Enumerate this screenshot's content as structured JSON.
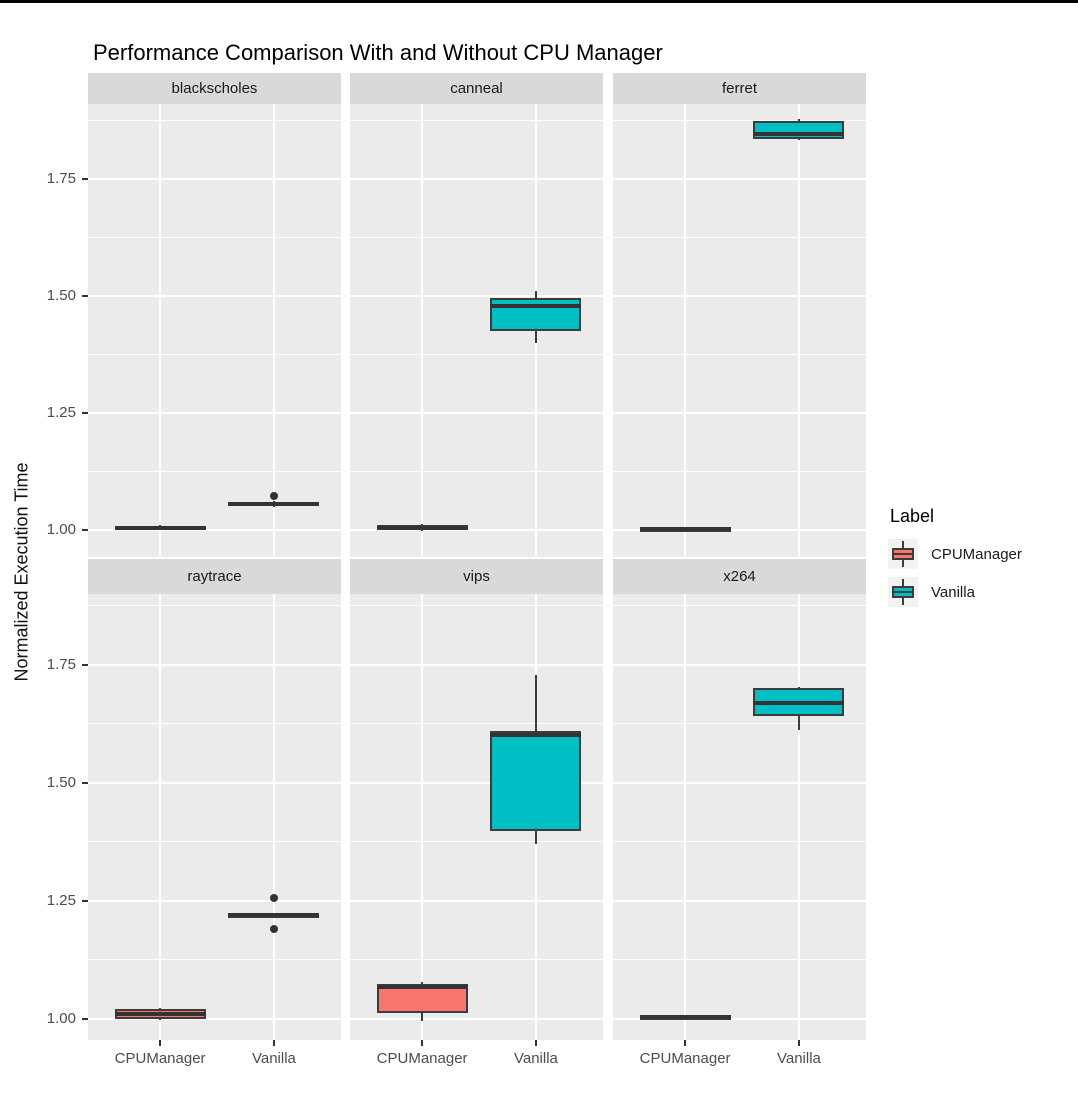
{
  "page": {
    "title": "Performance Comparison With and Without CPU Manager"
  },
  "axes": {
    "y_title": "Normalized Execution Time",
    "y_tick_labels": [
      "1.00",
      "1.25",
      "1.50",
      "1.75"
    ],
    "x_categories": [
      "CPUManager",
      "Vanilla"
    ]
  },
  "legend": {
    "title": "Label",
    "entries": [
      {
        "label": "CPUManager",
        "color": "#F8766D"
      },
      {
        "label": "Vanilla",
        "color": "#00BFC4"
      }
    ]
  },
  "chart_data": {
    "type": "boxplot",
    "title": "Performance Comparison With and Without CPU Manager",
    "ylabel": "Normalized Execution Time",
    "xlabel": "",
    "categories": [
      "CPUManager",
      "Vanilla"
    ],
    "yticks": [
      1.0,
      1.25,
      1.5,
      1.75
    ],
    "yticks_minor": [
      1.125,
      1.375,
      1.625,
      1.875
    ],
    "ylim": [
      0.94,
      1.91
    ],
    "grid": "white-on-gray",
    "legend_position": "right",
    "facet_rows": [
      [
        "blackscholes",
        "canneal",
        "ferret"
      ],
      [
        "raytrace",
        "vips",
        "x264"
      ]
    ],
    "colors": {
      "CPUManager": "#F8766D",
      "Vanilla": "#00BFC4",
      "box_border": "#3C3C3C",
      "panel_bg": "#EBEBEB",
      "strip_bg": "#D9D9D9",
      "grid": "#FFFFFF"
    },
    "facets": [
      {
        "label": "blackscholes",
        "boxes": [
          {
            "group": "CPUManager",
            "min": 1.0,
            "q1": 1.001,
            "median": 1.005,
            "q3": 1.009,
            "max": 1.01,
            "outliers": []
          },
          {
            "group": "Vanilla",
            "min": 1.049,
            "q1": 1.051,
            "median": 1.056,
            "q3": 1.06,
            "max": 1.062,
            "outliers": [
              1.072
            ]
          }
        ]
      },
      {
        "label": "canneal",
        "boxes": [
          {
            "group": "CPUManager",
            "min": 0.997,
            "q1": 1.0,
            "median": 1.003,
            "q3": 1.01,
            "max": 1.012,
            "outliers": []
          },
          {
            "group": "Vanilla",
            "min": 1.4,
            "q1": 1.424,
            "median": 1.479,
            "q3": 1.496,
            "max": 1.51,
            "outliers": []
          }
        ]
      },
      {
        "label": "ferret",
        "boxes": [
          {
            "group": "CPUManager",
            "min": 0.997,
            "q1": 0.999,
            "median": 1.001,
            "q3": 1.004,
            "max": 1.005,
            "outliers": []
          },
          {
            "group": "Vanilla",
            "min": 1.832,
            "q1": 1.836,
            "median": 1.845,
            "q3": 1.873,
            "max": 1.877,
            "outliers": []
          }
        ]
      },
      {
        "label": "raytrace",
        "boxes": [
          {
            "group": "CPUManager",
            "min": 0.997,
            "q1": 1.0,
            "median": 1.01,
            "q3": 1.02,
            "max": 1.023,
            "outliers": []
          },
          {
            "group": "Vanilla",
            "min": 1.214,
            "q1": 1.216,
            "median": 1.219,
            "q3": 1.222,
            "max": 1.224,
            "outliers": [
              1.255,
              1.19
            ]
          }
        ]
      },
      {
        "label": "vips",
        "boxes": [
          {
            "group": "CPUManager",
            "min": 0.995,
            "q1": 1.013,
            "median": 1.068,
            "q3": 1.074,
            "max": 1.077,
            "outliers": []
          },
          {
            "group": "Vanilla",
            "min": 1.37,
            "q1": 1.398,
            "median": 1.602,
            "q3": 1.61,
            "max": 1.729,
            "outliers": []
          }
        ]
      },
      {
        "label": "x264",
        "boxes": [
          {
            "group": "CPUManager",
            "min": 0.997,
            "q1": 1.0,
            "median": 1.003,
            "q3": 1.006,
            "max": 1.008,
            "outliers": []
          },
          {
            "group": "Vanilla",
            "min": 1.612,
            "q1": 1.642,
            "median": 1.668,
            "q3": 1.7,
            "max": 1.704,
            "outliers": []
          }
        ]
      }
    ]
  }
}
